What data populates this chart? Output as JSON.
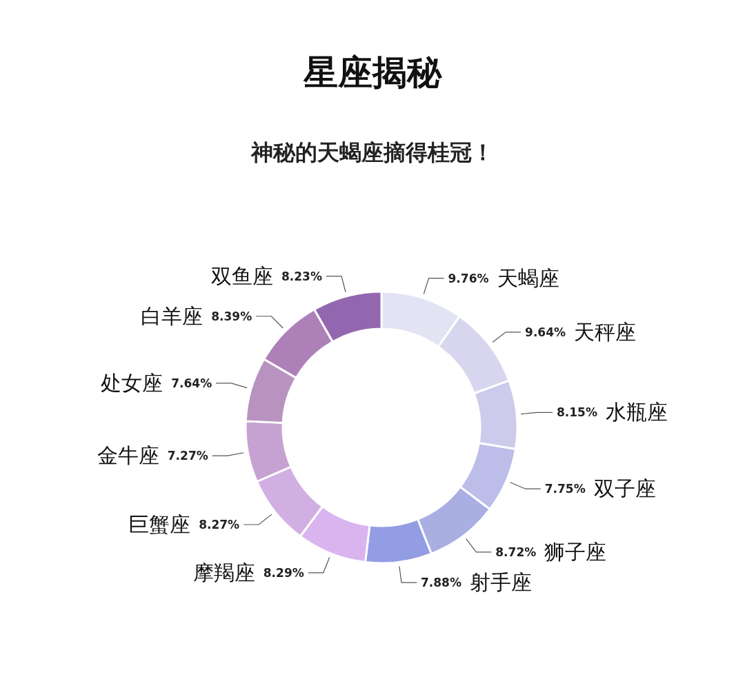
{
  "chart_data": {
    "type": "donut",
    "title": "星座揭秘",
    "subtitle": "神秘的天蝎座摘得桂冠！",
    "categories": [
      "天蝎座",
      "天秤座",
      "水瓶座",
      "双子座",
      "狮子座",
      "射手座",
      "摩羯座",
      "巨蟹座",
      "金牛座",
      "处女座",
      "白羊座",
      "双鱼座"
    ],
    "values": [
      9.76,
      9.64,
      8.15,
      7.75,
      8.72,
      7.88,
      8.29,
      8.27,
      7.27,
      7.64,
      8.39,
      8.23
    ],
    "value_labels": [
      "9.76%",
      "9.64%",
      "8.15%",
      "7.75%",
      "8.72%",
      "7.88%",
      "8.29%",
      "8.27%",
      "7.27%",
      "7.64%",
      "8.39%",
      "8.23%"
    ],
    "colors": [
      "#e2e3f3",
      "#d8d6ee",
      "#cccbec",
      "#bcbde8",
      "#a9aee3",
      "#939de3",
      "#dab4ee",
      "#d1afe2",
      "#c6a2d2",
      "#b893c0",
      "#ae80b8",
      "#9367b0"
    ]
  }
}
